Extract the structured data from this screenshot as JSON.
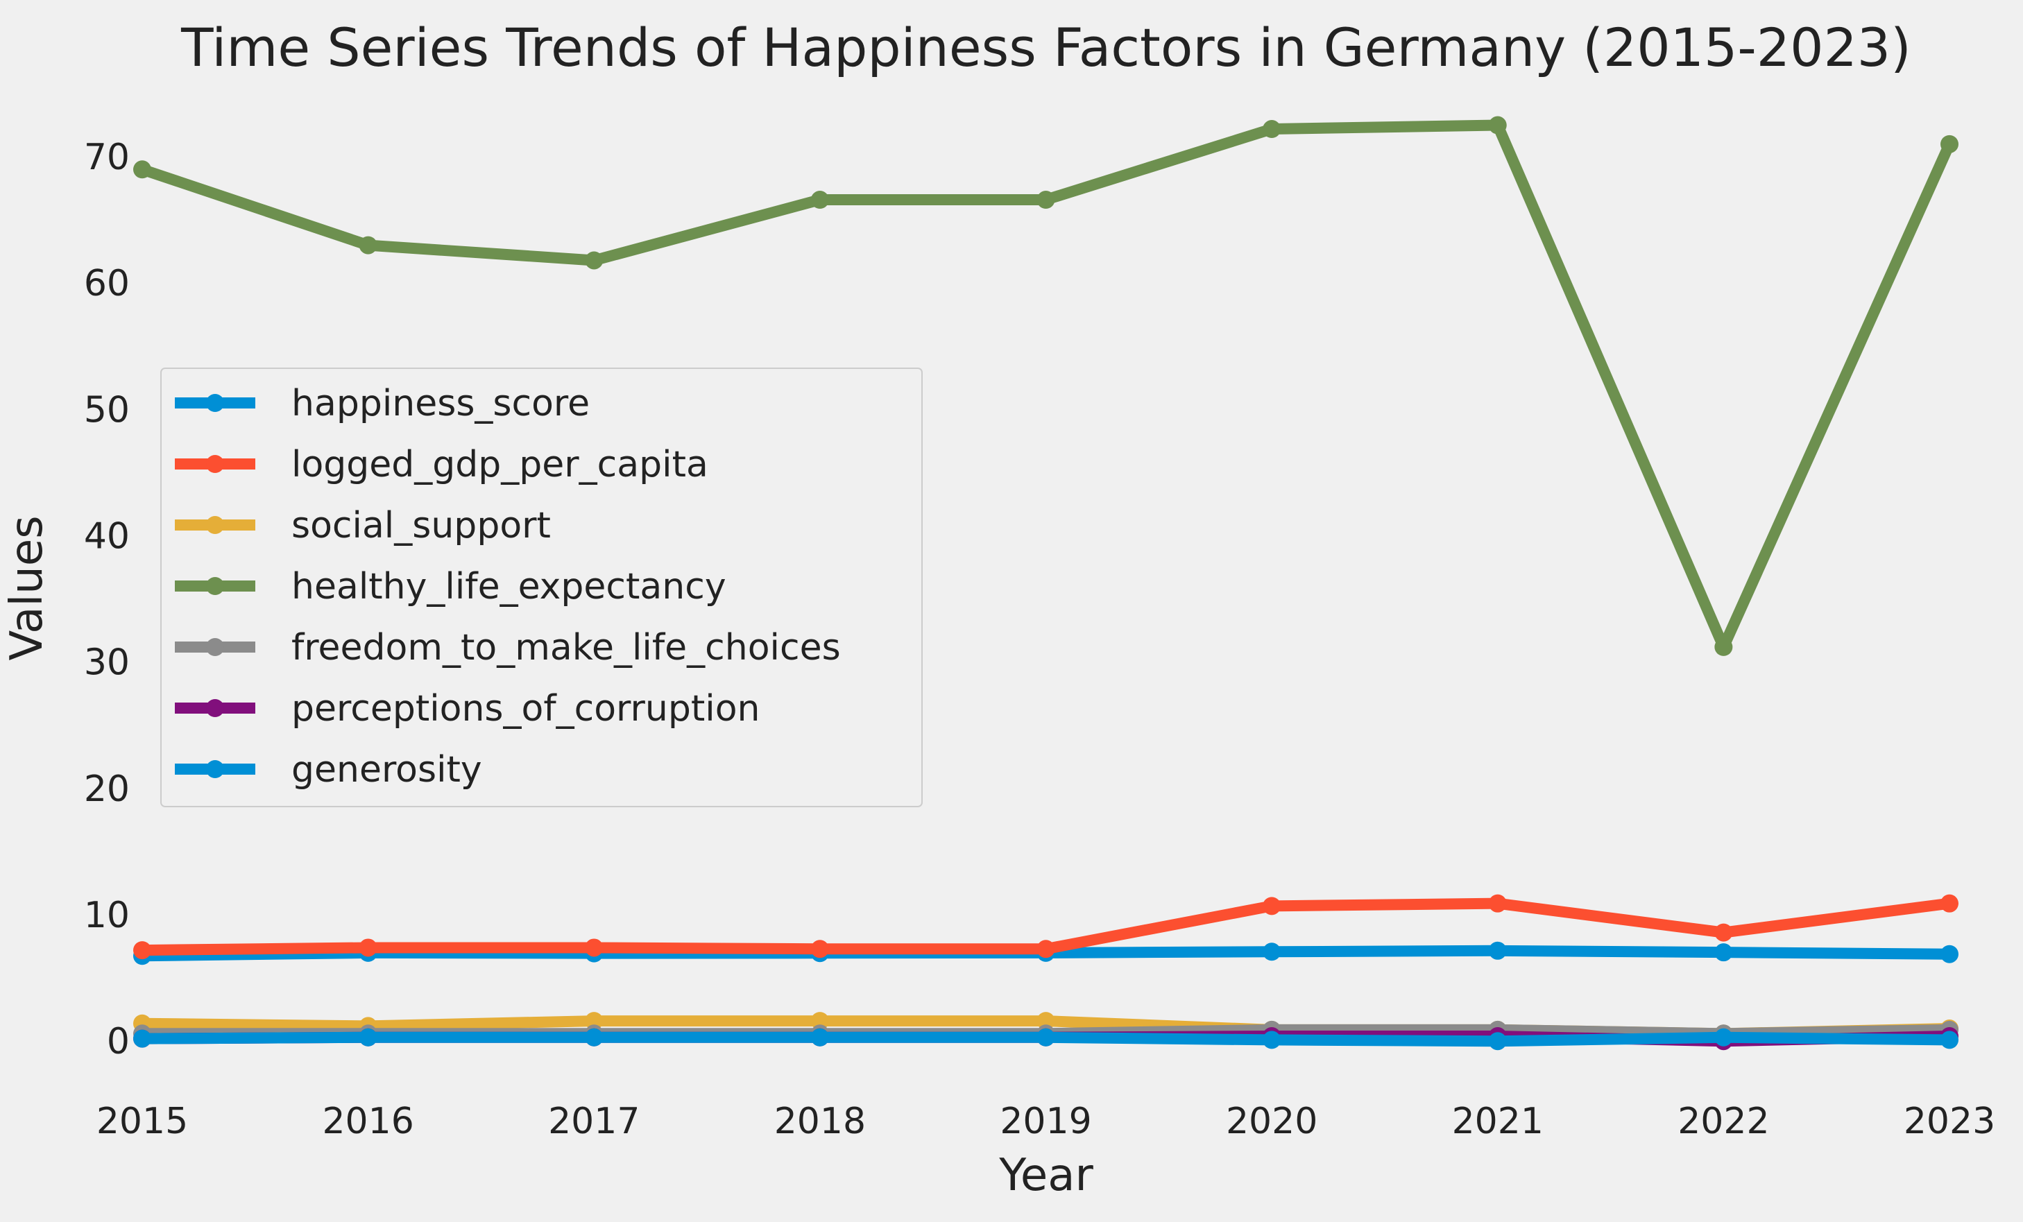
{
  "chart_data": {
    "type": "line",
    "title": "Time Series Trends of Happiness Factors in Germany (2015-2023)",
    "xlabel": "Year",
    "ylabel": "Values",
    "x": [
      2015,
      2016,
      2017,
      2018,
      2019,
      2020,
      2021,
      2022,
      2023
    ],
    "xlim": [
      2015,
      2023
    ],
    "ylim": [
      -3.5,
      75
    ],
    "yticks": [
      0,
      10,
      20,
      30,
      40,
      50,
      60,
      70
    ],
    "grid": false,
    "legend_position": "center-left",
    "series": [
      {
        "name": "happiness_score",
        "color": "#008fd5",
        "values": [
          6.75,
          6.99,
          6.95,
          6.97,
          6.99,
          7.08,
          7.16,
          7.03,
          6.89
        ]
      },
      {
        "name": "logged_gdp_per_capita",
        "color": "#fc4f30",
        "values": [
          7.2,
          7.4,
          7.4,
          7.3,
          7.3,
          10.7,
          10.9,
          8.6,
          10.9
        ]
      },
      {
        "name": "social_support",
        "color": "#e5ae38",
        "values": [
          1.4,
          1.2,
          1.6,
          1.6,
          1.6,
          0.9,
          0.9,
          0.6,
          1.0
        ]
      },
      {
        "name": "healthy_life_expectancy",
        "color": "#6d904f",
        "values": [
          69.0,
          63.0,
          61.8,
          66.6,
          66.6,
          72.2,
          72.5,
          31.2,
          71.0
        ]
      },
      {
        "name": "freedom_to_make_life_choices",
        "color": "#8b8b8b",
        "values": [
          0.6,
          0.6,
          0.6,
          0.6,
          0.6,
          0.9,
          0.9,
          0.6,
          0.9
        ]
      },
      {
        "name": "perceptions_of_corruption",
        "color": "#810f7c",
        "values": [
          0.2,
          0.3,
          0.3,
          0.3,
          0.3,
          0.4,
          0.4,
          0.0,
          0.4
        ]
      },
      {
        "name": "generosity",
        "color": "#008fd5",
        "values": [
          0.2,
          0.3,
          0.3,
          0.3,
          0.3,
          0.1,
          0.0,
          0.3,
          0.1
        ]
      }
    ]
  }
}
